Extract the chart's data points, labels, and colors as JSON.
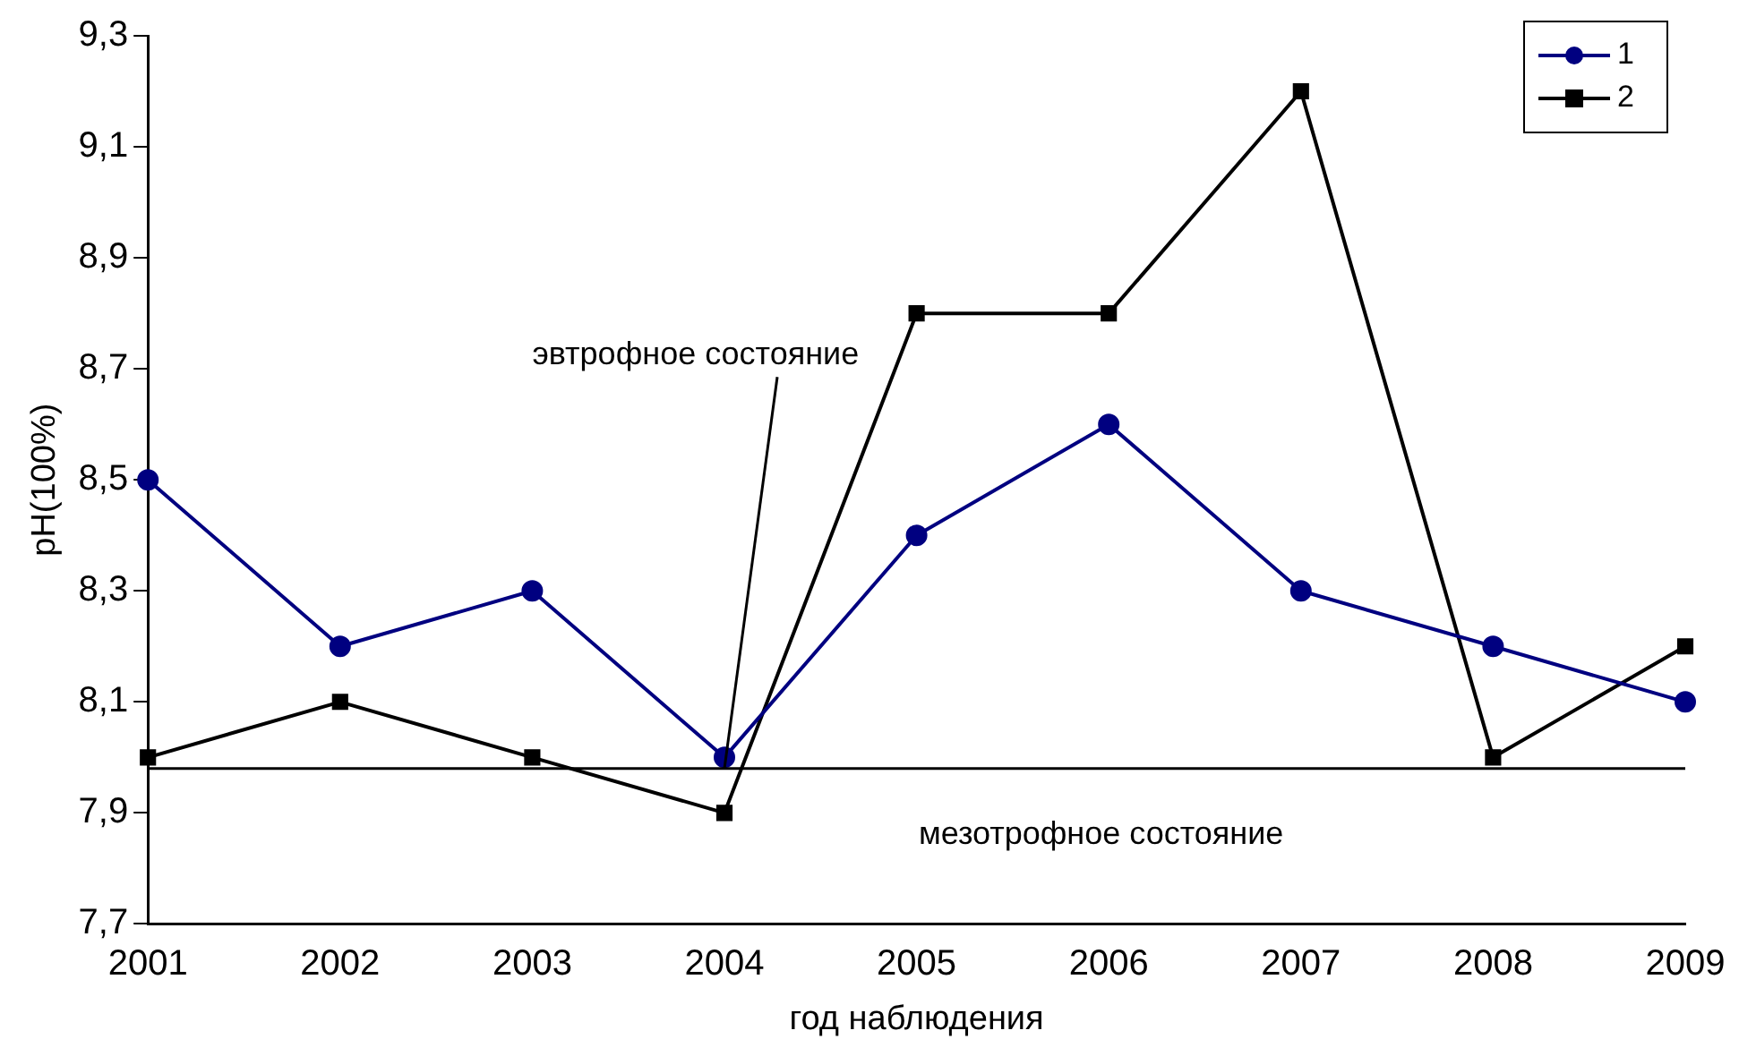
{
  "chart_data": {
    "type": "line",
    "xlabel": "год наблюдения",
    "ylabel": "pH(100%)",
    "categories": [
      "2001",
      "2002",
      "2003",
      "2004",
      "2005",
      "2006",
      "2007",
      "2008",
      "2009"
    ],
    "series": [
      {
        "name": "1",
        "color": "#000080",
        "marker": "circle",
        "values": [
          8.5,
          8.2,
          8.3,
          8.0,
          8.4,
          8.6,
          8.3,
          8.2,
          8.1
        ]
      },
      {
        "name": "2",
        "color": "#000000",
        "marker": "square",
        "values": [
          8.0,
          8.1,
          8.0,
          7.9,
          8.8,
          8.8,
          9.2,
          8.0,
          8.2
        ]
      }
    ],
    "ylim": [
      7.7,
      9.3
    ],
    "yticks": [
      {
        "value": 7.7,
        "label": "7,7"
      },
      {
        "value": 7.9,
        "label": "7,9"
      },
      {
        "value": 8.1,
        "label": "8,1"
      },
      {
        "value": 8.3,
        "label": "8,3"
      },
      {
        "value": 8.5,
        "label": "8,5"
      },
      {
        "value": 8.7,
        "label": "8,7"
      },
      {
        "value": 8.9,
        "label": "8,9"
      },
      {
        "value": 9.1,
        "label": "9,1"
      },
      {
        "value": 9.3,
        "label": "9,3"
      }
    ],
    "ref_lines": [
      {
        "axis": "y",
        "value": 7.98,
        "color": "#000000"
      }
    ],
    "annotations": [
      {
        "text": "эвтрофное состояние",
        "x": "2004",
        "y": 7.98
      },
      "мезотрофное состояние"
    ],
    "grid": false,
    "legend": "top right",
    "line_style": "solid"
  }
}
